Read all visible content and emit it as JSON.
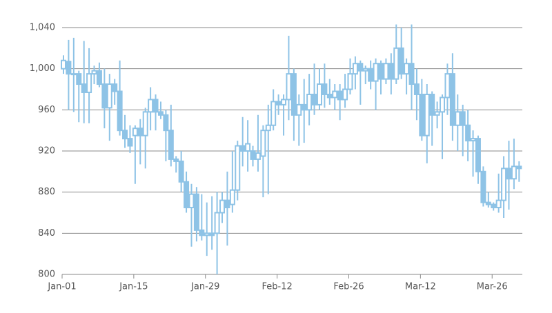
{
  "chart_data": {
    "type": "candlestick",
    "categories": [
      "Jan-01",
      null,
      null,
      null,
      null,
      null,
      null,
      null,
      null,
      null,
      null,
      null,
      null,
      null,
      "Jan-15",
      null,
      null,
      null,
      null,
      null,
      null,
      null,
      null,
      null,
      null,
      null,
      null,
      null,
      "Jan-29",
      null,
      null,
      null,
      null,
      null,
      null,
      null,
      null,
      null,
      null,
      null,
      null,
      null,
      "Feb-12",
      null,
      null,
      null,
      null,
      null,
      null,
      null,
      null,
      null,
      null,
      null,
      null,
      null,
      "Feb-26",
      null,
      null,
      null,
      null,
      null,
      null,
      null,
      null,
      null,
      null,
      null,
      null,
      null,
      "Mar-12",
      null,
      null,
      null,
      null,
      null,
      null,
      null,
      null,
      null,
      null,
      null,
      null,
      null,
      "Mar-26",
      null,
      null,
      null,
      null,
      null
    ],
    "color": "#8ec3e6",
    "open": [
      1000,
      1007,
      995,
      995,
      985,
      977,
      995,
      998,
      985,
      962,
      985,
      978,
      940,
      932,
      935,
      942,
      935,
      958,
      970,
      958,
      955,
      940,
      912,
      910,
      890,
      865,
      878,
      843,
      838,
      840,
      840,
      860,
      872,
      868,
      882,
      925,
      920,
      920,
      912,
      915,
      940,
      945,
      968,
      965,
      970,
      995,
      955,
      965,
      960,
      975,
      965,
      985,
      975,
      972,
      978,
      970,
      980,
      995,
      1005,
      998,
      1000,
      988,
      1005,
      990,
      1005,
      990,
      1020,
      995,
      1005,
      985,
      975,
      935,
      975,
      955,
      958,
      972,
      995,
      945,
      958,
      945,
      930,
      932,
      900,
      870,
      868,
      865,
      872,
      903,
      893,
      905
    ],
    "high": [
      1013,
      1028,
      1030,
      998,
      1027,
      1020,
      1003,
      1006,
      1000,
      995,
      990,
      1008,
      955,
      945,
      945,
      951,
      962,
      982,
      975,
      968,
      960,
      965,
      915,
      920,
      900,
      888,
      885,
      878,
      870,
      876,
      880,
      880,
      900,
      920,
      930,
      953,
      950,
      925,
      955,
      945,
      965,
      980,
      975,
      975,
      1032,
      1000,
      975,
      990,
      995,
      1005,
      1000,
      1005,
      990,
      985,
      985,
      995,
      1010,
      1012,
      1008,
      1003,
      1008,
      1010,
      1008,
      1010,
      1015,
      1043,
      1040,
      1010,
      1043,
      1000,
      990,
      985,
      978,
      968,
      975,
      1005,
      1015,
      975,
      965,
      960,
      940,
      935,
      905,
      880,
      870,
      898,
      915,
      930,
      932,
      910
    ],
    "low": [
      995,
      960,
      958,
      948,
      947,
      947,
      985,
      982,
      942,
      930,
      965,
      935,
      923,
      918,
      888,
      907,
      903,
      940,
      940,
      951,
      910,
      905,
      899,
      880,
      860,
      827,
      832,
      833,
      818,
      824,
      800,
      850,
      828,
      860,
      872,
      905,
      900,
      905,
      900,
      875,
      878,
      940,
      955,
      935,
      950,
      930,
      925,
      928,
      945,
      955,
      960,
      962,
      965,
      960,
      950,
      962,
      975,
      980,
      965,
      985,
      980,
      960,
      975,
      985,
      975,
      985,
      990,
      975,
      960,
      950,
      930,
      908,
      925,
      942,
      912,
      955,
      930,
      920,
      915,
      910,
      895,
      888,
      866,
      865,
      862,
      860,
      855,
      863,
      883,
      890
    ],
    "close": [
      1008,
      995,
      995,
      985,
      977,
      995,
      998,
      985,
      962,
      985,
      978,
      940,
      932,
      925,
      942,
      935,
      958,
      970,
      958,
      955,
      940,
      912,
      910,
      890,
      865,
      878,
      843,
      838,
      840,
      838,
      860,
      872,
      865,
      882,
      925,
      920,
      927,
      912,
      918,
      940,
      945,
      968,
      965,
      970,
      995,
      955,
      965,
      960,
      975,
      965,
      985,
      975,
      972,
      978,
      970,
      980,
      995,
      1005,
      998,
      1000,
      988,
      1005,
      990,
      1005,
      990,
      1020,
      995,
      1005,
      985,
      975,
      935,
      975,
      955,
      958,
      972,
      995,
      945,
      958,
      945,
      930,
      932,
      900,
      870,
      868,
      865,
      872,
      903,
      893,
      905,
      903
    ],
    "ylim": [
      800,
      1040
    ],
    "yticks": [
      800,
      840,
      880,
      920,
      960,
      {
        "value": 1000,
        "label": "1,000"
      },
      {
        "value": 1040,
        "label": "1,040"
      }
    ],
    "grid": true
  }
}
